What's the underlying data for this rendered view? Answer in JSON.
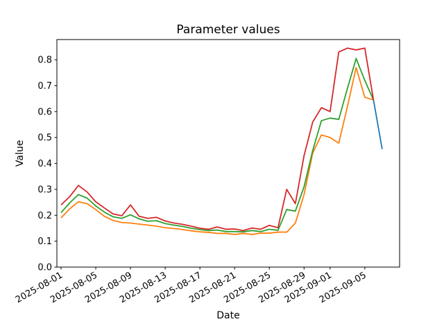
{
  "chart_data": {
    "type": "line",
    "title": "Parameter values",
    "xlabel": "Date",
    "ylabel": "Value",
    "grid": false,
    "legend": null,
    "ylim": [
      0.0,
      0.878
    ],
    "y_ticks": [
      {
        "label": "0.0",
        "value": 0.0
      },
      {
        "label": "0.1",
        "value": 0.1
      },
      {
        "label": "0.2",
        "value": 0.2
      },
      {
        "label": "0.3",
        "value": 0.3
      },
      {
        "label": "0.4",
        "value": 0.4
      },
      {
        "label": "0.5",
        "value": 0.5
      },
      {
        "label": "0.6",
        "value": 0.6
      },
      {
        "label": "0.7",
        "value": 0.7
      },
      {
        "label": "0.8",
        "value": 0.8
      }
    ],
    "x_ticks": [
      {
        "label": "2025-08-01",
        "day": 0
      },
      {
        "label": "2025-08-05",
        "day": 4
      },
      {
        "label": "2025-08-09",
        "day": 8
      },
      {
        "label": "2025-08-13",
        "day": 12
      },
      {
        "label": "2025-08-17",
        "day": 16
      },
      {
        "label": "2025-08-21",
        "day": 20
      },
      {
        "label": "2025-08-25",
        "day": 24
      },
      {
        "label": "2025-08-29",
        "day": 28
      },
      {
        "label": "2025-09-01",
        "day": 31
      },
      {
        "label": "2025-09-05",
        "day": 35
      }
    ],
    "x_dates": [
      "2025-08-01",
      "2025-08-02",
      "2025-08-03",
      "2025-08-04",
      "2025-08-05",
      "2025-08-06",
      "2025-08-07",
      "2025-08-08",
      "2025-08-09",
      "2025-08-10",
      "2025-08-11",
      "2025-08-12",
      "2025-08-13",
      "2025-08-14",
      "2025-08-15",
      "2025-08-16",
      "2025-08-17",
      "2025-08-18",
      "2025-08-19",
      "2025-08-20",
      "2025-08-21",
      "2025-08-22",
      "2025-08-23",
      "2025-08-24",
      "2025-08-25",
      "2025-08-26",
      "2025-08-27",
      "2025-08-28",
      "2025-08-29",
      "2025-08-30",
      "2025-08-31",
      "2025-09-01",
      "2025-09-02",
      "2025-09-03",
      "2025-09-04",
      "2025-09-05",
      "2025-09-06",
      "2025-09-07"
    ],
    "series": [
      {
        "name": "series-blue",
        "color": "#1f77b4",
        "start_index": 36,
        "values": [
          0.645,
          0.455
        ]
      },
      {
        "name": "series-orange",
        "color": "#ff7f0e",
        "start_index": 0,
        "values": [
          0.19,
          0.225,
          0.252,
          0.245,
          0.222,
          0.196,
          0.18,
          0.172,
          0.17,
          0.166,
          0.162,
          0.158,
          0.152,
          0.149,
          0.145,
          0.14,
          0.136,
          0.134,
          0.13,
          0.13,
          0.126,
          0.13,
          0.126,
          0.131,
          0.131,
          0.135,
          0.135,
          0.17,
          0.28,
          0.44,
          0.51,
          0.5,
          0.478,
          0.62,
          0.77,
          0.655,
          0.645
        ]
      },
      {
        "name": "series-green",
        "color": "#2ca02c",
        "start_index": 0,
        "values": [
          0.21,
          0.248,
          0.28,
          0.266,
          0.236,
          0.212,
          0.194,
          0.188,
          0.202,
          0.186,
          0.177,
          0.179,
          0.168,
          0.162,
          0.157,
          0.15,
          0.145,
          0.141,
          0.143,
          0.137,
          0.137,
          0.136,
          0.141,
          0.137,
          0.146,
          0.142,
          0.222,
          0.216,
          0.31,
          0.45,
          0.565,
          0.575,
          0.57,
          0.69,
          0.805,
          0.72,
          0.645
        ]
      },
      {
        "name": "series-red",
        "color": "#d62728",
        "start_index": 0,
        "values": [
          0.24,
          0.272,
          0.315,
          0.29,
          0.252,
          0.228,
          0.205,
          0.198,
          0.24,
          0.196,
          0.188,
          0.192,
          0.178,
          0.17,
          0.165,
          0.158,
          0.15,
          0.146,
          0.155,
          0.146,
          0.147,
          0.141,
          0.151,
          0.146,
          0.161,
          0.152,
          0.3,
          0.245,
          0.43,
          0.56,
          0.615,
          0.6,
          0.83,
          0.845,
          0.838,
          0.845,
          0.645
        ]
      }
    ]
  }
}
